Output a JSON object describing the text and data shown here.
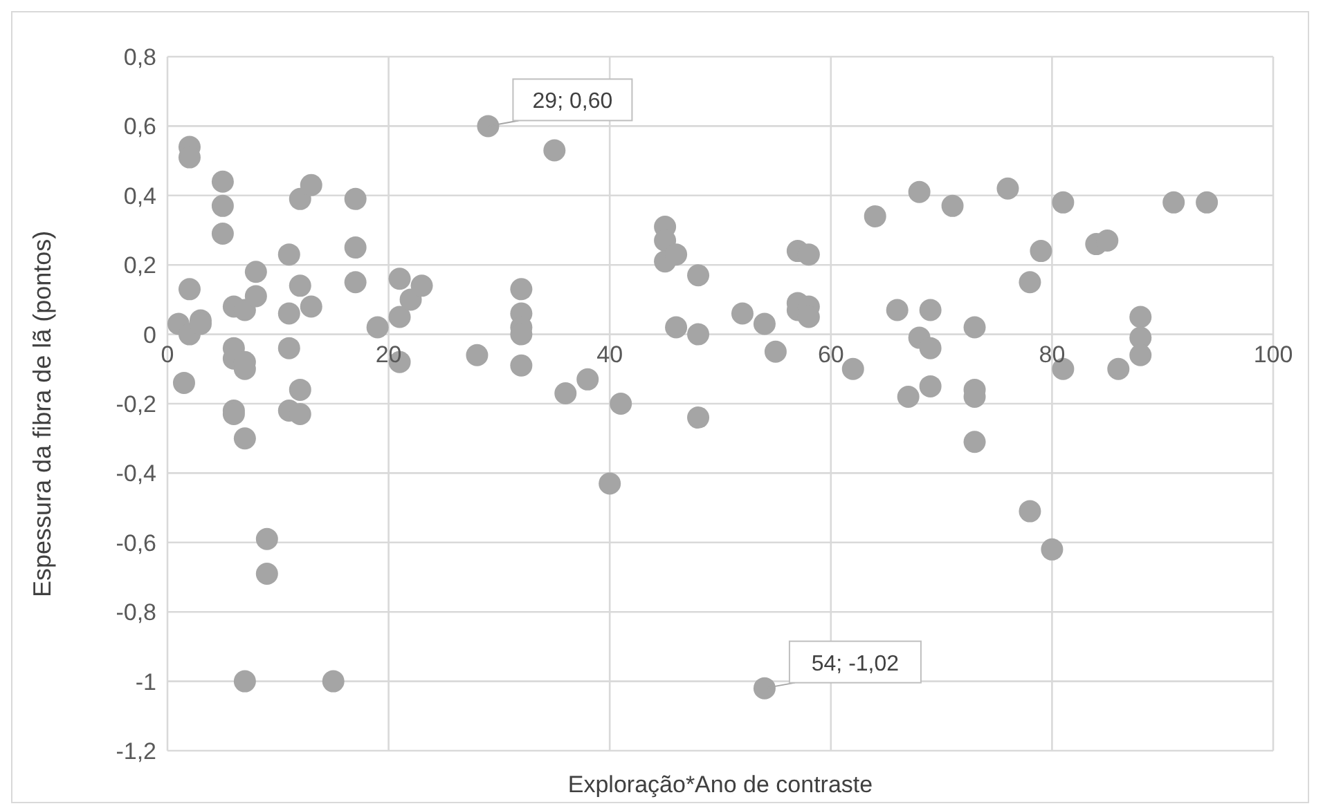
{
  "chart_data": {
    "type": "scatter",
    "xlabel": "Exploração*Ano de contraste",
    "ylabel": "Espessura da fibra de lã (pontos)",
    "xlim": [
      0,
      100
    ],
    "xticks": [
      0,
      20,
      40,
      60,
      80,
      100
    ],
    "ylim": [
      -1.2,
      0.8
    ],
    "yticks": [
      {
        "value": -1.2,
        "label": "-1,2"
      },
      -1,
      {
        "value": -0.8,
        "label": "-0,8"
      },
      {
        "value": -0.6,
        "label": "-0,6"
      },
      {
        "value": -0.4,
        "label": "-0,4"
      },
      {
        "value": -0.2,
        "label": "-0,2"
      },
      0,
      {
        "value": 0.2,
        "label": "0,2"
      },
      {
        "value": 0.4,
        "label": "0,4"
      },
      {
        "value": 0.6,
        "label": "0,6"
      },
      {
        "value": 0.8,
        "label": "0,8"
      }
    ],
    "grid": true,
    "marker": "circle",
    "legend": false,
    "series": [
      {
        "color": "#a5a5a5",
        "x": [
          1,
          1.5,
          2,
          2,
          2,
          2,
          3,
          3,
          5,
          5,
          5,
          6,
          6,
          6,
          6,
          6,
          7,
          7,
          7,
          7,
          7,
          8,
          8,
          9,
          9,
          11,
          11,
          11,
          11,
          12,
          12,
          12,
          12,
          13,
          13,
          15,
          17,
          17,
          17,
          19,
          21,
          21,
          21,
          22,
          23,
          28,
          29,
          32,
          32,
          32,
          32,
          32,
          35,
          36,
          38,
          40,
          41,
          45,
          45,
          45,
          46,
          46,
          48,
          48,
          48,
          52,
          54,
          54,
          55,
          57,
          57,
          57,
          58,
          58,
          58,
          62,
          64,
          66,
          67,
          68,
          68,
          69,
          69,
          69,
          71,
          73,
          73,
          73,
          73,
          76,
          78,
          78,
          79,
          80,
          81,
          81,
          84,
          85,
          86,
          88,
          88,
          88,
          91,
          94
        ],
        "values": [
          0.03,
          -0.14,
          0.54,
          0.51,
          0.13,
          0.0,
          0.04,
          0.03,
          0.44,
          0.37,
          0.29,
          0.08,
          -0.04,
          -0.07,
          -0.22,
          -0.23,
          0.07,
          -0.08,
          -0.1,
          -0.3,
          -1.0,
          0.18,
          0.11,
          -0.59,
          -0.69,
          0.23,
          0.06,
          -0.04,
          -0.22,
          0.39,
          0.14,
          -0.16,
          -0.23,
          0.43,
          0.08,
          -1.0,
          0.39,
          0.25,
          0.15,
          0.02,
          0.16,
          0.05,
          -0.08,
          0.1,
          0.14,
          -0.06,
          0.6,
          0.13,
          0.06,
          0.02,
          0.0,
          -0.09,
          0.53,
          -0.17,
          -0.13,
          -0.43,
          -0.2,
          0.31,
          0.27,
          0.21,
          0.23,
          0.02,
          0.17,
          0.0,
          -0.24,
          0.06,
          0.03,
          -1.02,
          -0.05,
          0.24,
          0.09,
          0.07,
          0.23,
          0.08,
          0.05,
          -0.1,
          0.34,
          0.07,
          -0.18,
          0.41,
          -0.01,
          0.07,
          -0.04,
          -0.15,
          0.37,
          0.02,
          -0.16,
          -0.18,
          -0.31,
          0.42,
          0.15,
          -0.51,
          0.24,
          -0.62,
          0.38,
          -0.1,
          0.26,
          0.27,
          -0.1,
          0.05,
          -0.01,
          -0.06,
          0.38,
          0.38
        ]
      }
    ],
    "annotations": [
      {
        "text": "29; 0,60",
        "x": 29,
        "y": 0.6
      },
      {
        "text": "54; -1,02",
        "x": 54,
        "y": -1.02
      }
    ]
  }
}
